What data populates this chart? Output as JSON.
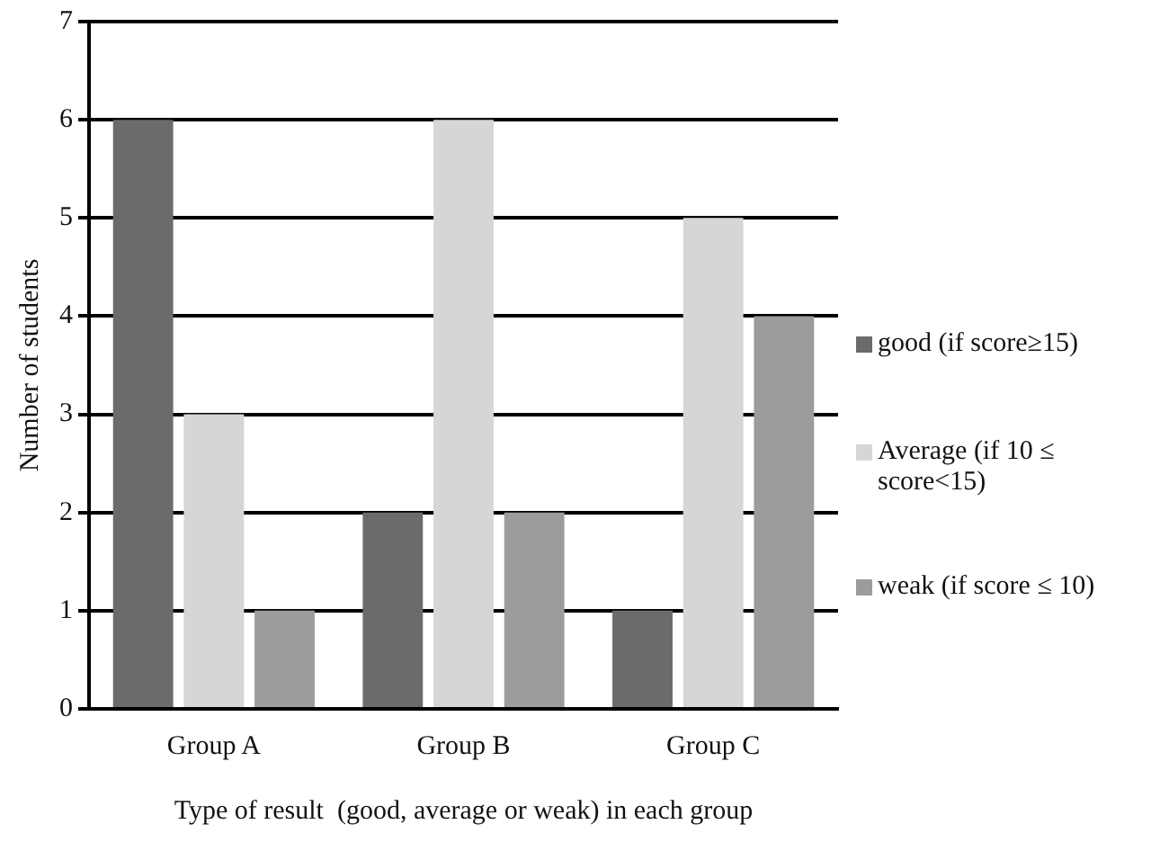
{
  "chart_data": {
    "type": "bar",
    "xlabel": "Type of result  (good, average or weak) in each group",
    "ylabel": "Number of students",
    "categories": [
      "Group A",
      "Group B",
      "Group C"
    ],
    "series": [
      {
        "name": "good (if score≥15)",
        "color": "#6b6b6b",
        "values": [
          6,
          2,
          1
        ]
      },
      {
        "name": "Average (if 10 ≤ score<15)",
        "color": "#d6d6d6",
        "values": [
          3,
          6,
          5
        ]
      },
      {
        "name": "weak (if score ≤ 10)",
        "color": "#9c9c9c",
        "values": [
          1,
          2,
          4
        ]
      }
    ],
    "ylim": [
      0,
      7
    ],
    "yticks": [
      0,
      1,
      2,
      3,
      4,
      5,
      6,
      7
    ],
    "grid": "y",
    "legend": "right"
  }
}
